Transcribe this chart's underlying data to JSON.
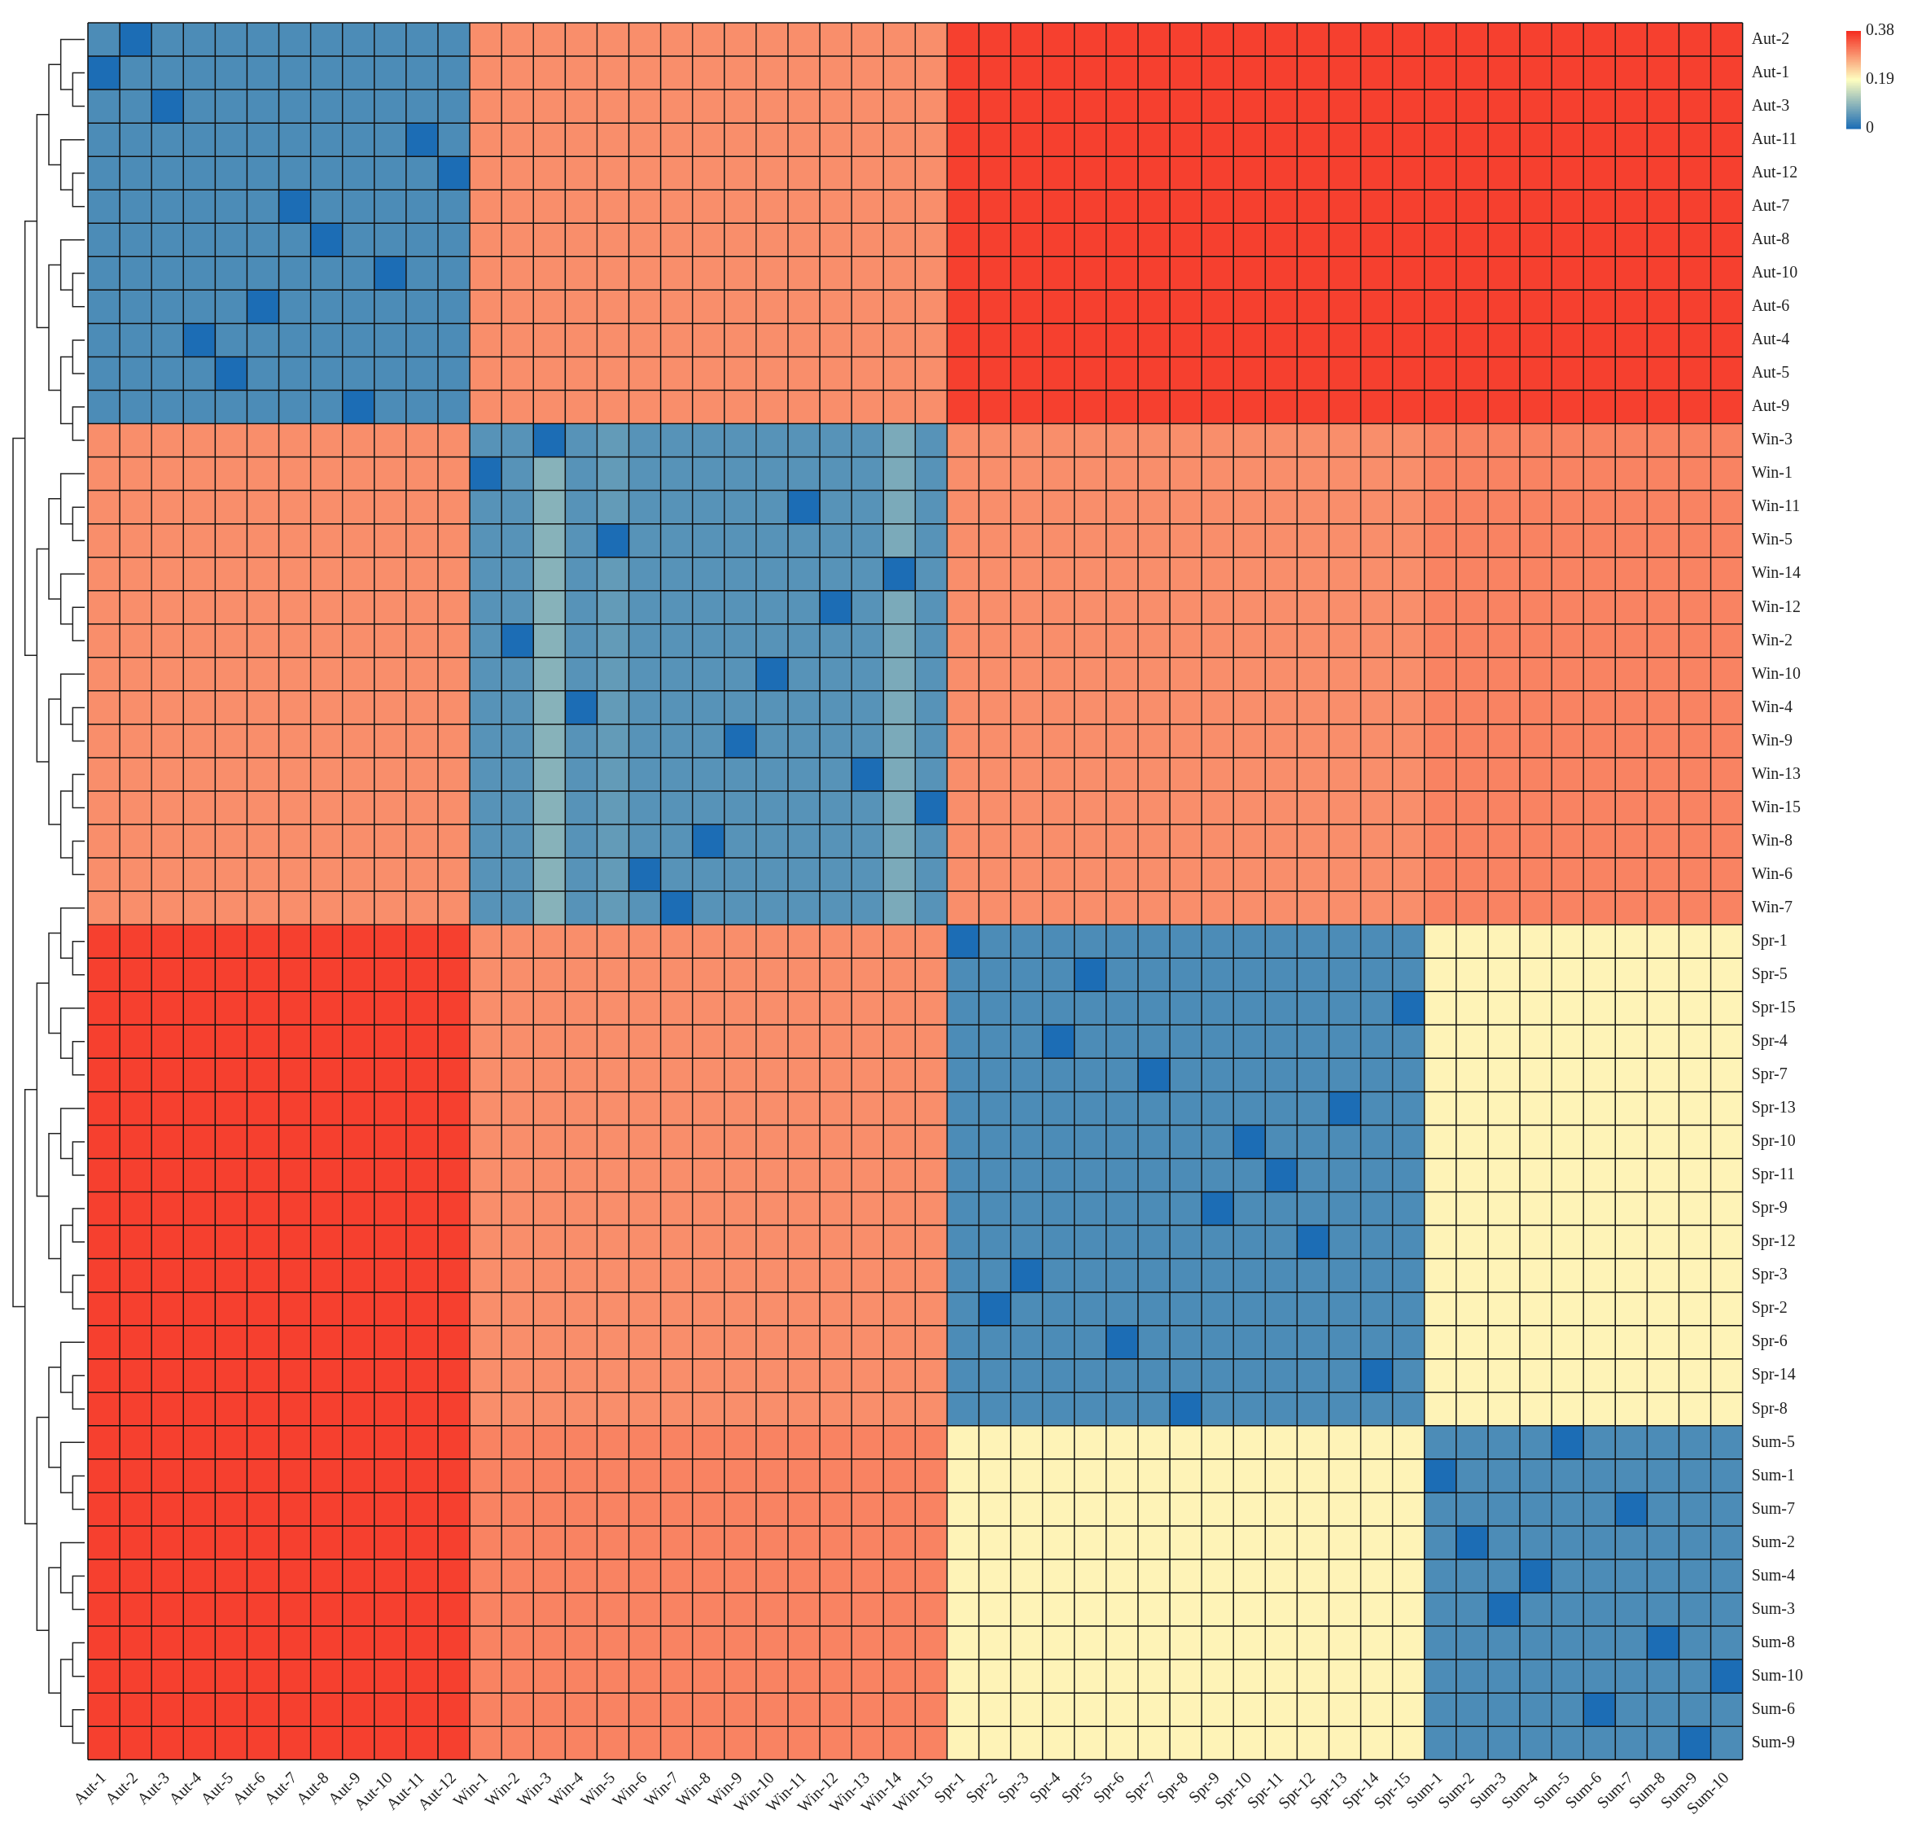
{
  "chart_data": {
    "type": "heatmap",
    "categories": [
      "Aut-1",
      "Aut-2",
      "Aut-3",
      "Aut-4",
      "Aut-5",
      "Aut-6",
      "Aut-7",
      "Aut-8",
      "Aut-9",
      "Aut-10",
      "Aut-11",
      "Aut-12",
      "Win-1",
      "Win-2",
      "Win-3",
      "Win-4",
      "Win-5",
      "Win-6",
      "Win-7",
      "Win-8",
      "Win-9",
      "Win-10",
      "Win-11",
      "Win-12",
      "Win-13",
      "Win-14",
      "Win-15",
      "Spr-1",
      "Spr-2",
      "Spr-3",
      "Spr-4",
      "Spr-5",
      "Spr-6",
      "Spr-7",
      "Spr-8",
      "Spr-9",
      "Spr-10",
      "Spr-11",
      "Spr-12",
      "Spr-13",
      "Spr-14",
      "Spr-15",
      "Sum-1",
      "Sum-2",
      "Sum-3",
      "Sum-4",
      "Sum-5",
      "Sum-6",
      "Sum-7",
      "Sum-8",
      "Sum-9",
      "Sum-10"
    ],
    "y_categories": [
      "Aut-2",
      "Aut-1",
      "Aut-3",
      "Aut-11",
      "Aut-12",
      "Aut-7",
      "Aut-8",
      "Aut-10",
      "Aut-6",
      "Aut-4",
      "Aut-5",
      "Aut-9",
      "Win-3",
      "Win-1",
      "Win-11",
      "Win-5",
      "Win-14",
      "Win-12",
      "Win-2",
      "Win-10",
      "Win-4",
      "Win-9",
      "Win-13",
      "Win-15",
      "Win-8",
      "Win-6",
      "Win-7",
      "Spr-1",
      "Spr-5",
      "Spr-15",
      "Spr-4",
      "Spr-7",
      "Spr-13",
      "Spr-10",
      "Spr-11",
      "Spr-9",
      "Spr-12",
      "Spr-3",
      "Spr-2",
      "Spr-6",
      "Spr-14",
      "Spr-8",
      "Sum-5",
      "Sum-1",
      "Sum-7",
      "Sum-2",
      "Sum-4",
      "Sum-3",
      "Sum-8",
      "Sum-10",
      "Sum-6",
      "Sum-9"
    ],
    "clim": [
      0,
      0.38
    ],
    "cticks": [
      0,
      0.19,
      0.38
    ],
    "cells": [
      [
        0.04,
        0,
        0.04,
        0.04,
        0.04,
        0.04,
        0.04,
        0.04,
        0.04,
        0.04,
        0.04,
        0.04,
        0.29,
        0.29,
        0.29,
        0.29,
        0.29,
        0.29,
        0.29,
        0.29,
        0.29,
        0.29,
        0.29,
        0.29,
        0.29,
        0.29,
        0.29,
        0.36,
        0.36,
        0.36,
        0.36,
        0.36,
        0.36,
        0.36,
        0.36,
        0.36,
        0.36,
        0.36,
        0.36,
        0.36,
        0.36,
        0.36,
        0.36,
        0.36,
        0.36,
        0.36,
        0.36,
        0.36,
        0.36,
        0.36,
        0.36,
        0.36
      ],
      [
        0,
        0.04,
        0.04,
        0.04,
        0.04,
        0.04,
        0.04,
        0.04,
        0.04,
        0.04,
        0.04,
        0.04,
        0.29,
        0.29,
        0.29,
        0.29,
        0.29,
        0.29,
        0.29,
        0.29,
        0.29,
        0.29,
        0.29,
        0.29,
        0.29,
        0.29,
        0.29,
        0.36,
        0.36,
        0.36,
        0.36,
        0.36,
        0.36,
        0.36,
        0.36,
        0.36,
        0.36,
        0.36,
        0.36,
        0.36,
        0.36,
        0.36,
        0.36,
        0.36,
        0.36,
        0.36,
        0.36,
        0.36,
        0.36,
        0.36,
        0.36,
        0.36
      ],
      [
        0.04,
        0.04,
        0,
        0.04,
        0.04,
        0.04,
        0.04,
        0.04,
        0.04,
        0.04,
        0.04,
        0.04,
        0.29,
        0.29,
        0.29,
        0.29,
        0.29,
        0.29,
        0.29,
        0.29,
        0.29,
        0.29,
        0.29,
        0.29,
        0.29,
        0.29,
        0.29,
        0.36,
        0.36,
        0.36,
        0.36,
        0.36,
        0.36,
        0.36,
        0.36,
        0.36,
        0.36,
        0.36,
        0.36,
        0.36,
        0.36,
        0.36,
        0.36,
        0.36,
        0.36,
        0.36,
        0.36,
        0.36,
        0.36,
        0.36,
        0.36,
        0.36
      ],
      [
        0.04,
        0.04,
        0.04,
        0.04,
        0.04,
        0.04,
        0.04,
        0.04,
        0.04,
        0.04,
        0,
        0.04,
        0.29,
        0.29,
        0.29,
        0.29,
        0.29,
        0.29,
        0.29,
        0.29,
        0.29,
        0.29,
        0.29,
        0.29,
        0.29,
        0.29,
        0.29,
        0.36,
        0.36,
        0.36,
        0.36,
        0.36,
        0.36,
        0.36,
        0.36,
        0.36,
        0.36,
        0.36,
        0.36,
        0.36,
        0.36,
        0.36,
        0.36,
        0.36,
        0.36,
        0.36,
        0.36,
        0.36,
        0.36,
        0.36,
        0.36,
        0.36
      ],
      [
        0.04,
        0.04,
        0.04,
        0.04,
        0.04,
        0.04,
        0.04,
        0.04,
        0.04,
        0.04,
        0.04,
        0,
        0.29,
        0.29,
        0.29,
        0.29,
        0.29,
        0.29,
        0.29,
        0.29,
        0.29,
        0.29,
        0.29,
        0.29,
        0.29,
        0.29,
        0.29,
        0.36,
        0.36,
        0.36,
        0.36,
        0.36,
        0.36,
        0.36,
        0.36,
        0.36,
        0.36,
        0.36,
        0.36,
        0.36,
        0.36,
        0.36,
        0.36,
        0.36,
        0.36,
        0.36,
        0.36,
        0.36,
        0.36,
        0.36,
        0.36,
        0.36
      ],
      [
        0.04,
        0.04,
        0.04,
        0.04,
        0.04,
        0.04,
        0,
        0.04,
        0.04,
        0.04,
        0.04,
        0.04,
        0.29,
        0.29,
        0.29,
        0.29,
        0.29,
        0.29,
        0.29,
        0.29,
        0.29,
        0.29,
        0.29,
        0.29,
        0.29,
        0.29,
        0.29,
        0.36,
        0.36,
        0.36,
        0.36,
        0.36,
        0.36,
        0.36,
        0.36,
        0.36,
        0.36,
        0.36,
        0.36,
        0.36,
        0.36,
        0.36,
        0.36,
        0.36,
        0.36,
        0.36,
        0.36,
        0.36,
        0.36,
        0.36,
        0.36,
        0.36
      ],
      [
        0.04,
        0.04,
        0.04,
        0.04,
        0.04,
        0.04,
        0.04,
        0,
        0.04,
        0.04,
        0.04,
        0.04,
        0.29,
        0.29,
        0.29,
        0.29,
        0.29,
        0.29,
        0.29,
        0.29,
        0.29,
        0.29,
        0.29,
        0.29,
        0.29,
        0.29,
        0.29,
        0.36,
        0.36,
        0.36,
        0.36,
        0.36,
        0.36,
        0.36,
        0.36,
        0.36,
        0.36,
        0.36,
        0.36,
        0.36,
        0.36,
        0.36,
        0.36,
        0.36,
        0.36,
        0.36,
        0.36,
        0.36,
        0.36,
        0.36,
        0.36,
        0.36
      ],
      [
        0.04,
        0.04,
        0.04,
        0.04,
        0.04,
        0.04,
        0.04,
        0.04,
        0.04,
        0,
        0.04,
        0.04,
        0.29,
        0.29,
        0.29,
        0.29,
        0.29,
        0.29,
        0.29,
        0.29,
        0.29,
        0.29,
        0.29,
        0.29,
        0.29,
        0.29,
        0.29,
        0.36,
        0.36,
        0.36,
        0.36,
        0.36,
        0.36,
        0.36,
        0.36,
        0.36,
        0.36,
        0.36,
        0.36,
        0.36,
        0.36,
        0.36,
        0.36,
        0.36,
        0.36,
        0.36,
        0.36,
        0.36,
        0.36,
        0.36,
        0.36,
        0.36
      ],
      [
        0.04,
        0.04,
        0.04,
        0.04,
        0.04,
        0,
        0.04,
        0.04,
        0.04,
        0.04,
        0.04,
        0.04,
        0.29,
        0.29,
        0.29,
        0.29,
        0.29,
        0.29,
        0.29,
        0.29,
        0.29,
        0.29,
        0.29,
        0.29,
        0.29,
        0.29,
        0.29,
        0.36,
        0.36,
        0.36,
        0.36,
        0.36,
        0.36,
        0.36,
        0.36,
        0.36,
        0.36,
        0.36,
        0.36,
        0.36,
        0.36,
        0.36,
        0.36,
        0.36,
        0.36,
        0.36,
        0.36,
        0.36,
        0.36,
        0.36,
        0.36,
        0.36
      ],
      [
        0.04,
        0.04,
        0.04,
        0,
        0.04,
        0.04,
        0.04,
        0.04,
        0.04,
        0.04,
        0.04,
        0.04,
        0.29,
        0.29,
        0.29,
        0.29,
        0.29,
        0.29,
        0.29,
        0.29,
        0.29,
        0.29,
        0.29,
        0.29,
        0.29,
        0.29,
        0.29,
        0.36,
        0.36,
        0.36,
        0.36,
        0.36,
        0.36,
        0.36,
        0.36,
        0.36,
        0.36,
        0.36,
        0.36,
        0.36,
        0.36,
        0.36,
        0.36,
        0.36,
        0.36,
        0.36,
        0.36,
        0.36,
        0.36,
        0.36,
        0.36,
        0.36
      ],
      [
        0.04,
        0.04,
        0.04,
        0.04,
        0,
        0.04,
        0.04,
        0.04,
        0.04,
        0.04,
        0.04,
        0.04,
        0.29,
        0.29,
        0.29,
        0.29,
        0.29,
        0.29,
        0.29,
        0.29,
        0.29,
        0.29,
        0.29,
        0.29,
        0.29,
        0.29,
        0.29,
        0.36,
        0.36,
        0.36,
        0.36,
        0.36,
        0.36,
        0.36,
        0.36,
        0.36,
        0.36,
        0.36,
        0.36,
        0.36,
        0.36,
        0.36,
        0.36,
        0.36,
        0.36,
        0.36,
        0.36,
        0.36,
        0.36,
        0.36,
        0.36,
        0.36
      ],
      [
        0.04,
        0.04,
        0.04,
        0.04,
        0.04,
        0.04,
        0.04,
        0.04,
        0,
        0.04,
        0.04,
        0.04,
        0.29,
        0.29,
        0.29,
        0.29,
        0.29,
        0.29,
        0.29,
        0.29,
        0.29,
        0.29,
        0.29,
        0.29,
        0.29,
        0.29,
        0.29,
        0.36,
        0.36,
        0.36,
        0.36,
        0.36,
        0.36,
        0.36,
        0.36,
        0.36,
        0.36,
        0.36,
        0.36,
        0.36,
        0.36,
        0.36,
        0.36,
        0.36,
        0.36,
        0.36,
        0.36,
        0.36,
        0.36,
        0.36,
        0.36,
        0.36
      ],
      [
        0.29,
        0.29,
        0.29,
        0.29,
        0.29,
        0.29,
        0.29,
        0.29,
        0.29,
        0.29,
        0.29,
        0.29,
        0.05,
        0.05,
        0,
        0.05,
        0.06,
        0.05,
        0.05,
        0.05,
        0.05,
        0.05,
        0.05,
        0.05,
        0.05,
        0.08,
        0.05,
        0.29,
        0.29,
        0.29,
        0.29,
        0.29,
        0.29,
        0.29,
        0.29,
        0.29,
        0.29,
        0.29,
        0.29,
        0.29,
        0.29,
        0.29,
        0.3,
        0.3,
        0.3,
        0.3,
        0.3,
        0.3,
        0.3,
        0.3,
        0.3,
        0.3
      ],
      [
        0.29,
        0.29,
        0.29,
        0.29,
        0.29,
        0.29,
        0.29,
        0.29,
        0.29,
        0.29,
        0.29,
        0.29,
        0,
        0.05,
        0.09,
        0.05,
        0.06,
        0.05,
        0.05,
        0.05,
        0.05,
        0.05,
        0.05,
        0.05,
        0.05,
        0.08,
        0.05,
        0.29,
        0.29,
        0.29,
        0.29,
        0.29,
        0.29,
        0.29,
        0.29,
        0.29,
        0.29,
        0.29,
        0.29,
        0.29,
        0.29,
        0.29,
        0.3,
        0.3,
        0.3,
        0.3,
        0.3,
        0.3,
        0.3,
        0.3,
        0.3,
        0.3
      ],
      [
        0.29,
        0.29,
        0.29,
        0.29,
        0.29,
        0.29,
        0.29,
        0.29,
        0.29,
        0.29,
        0.29,
        0.29,
        0.05,
        0.05,
        0.09,
        0.05,
        0.06,
        0.05,
        0.05,
        0.05,
        0.05,
        0.05,
        0,
        0.05,
        0.05,
        0.08,
        0.05,
        0.29,
        0.29,
        0.29,
        0.29,
        0.29,
        0.29,
        0.29,
        0.29,
        0.29,
        0.29,
        0.29,
        0.29,
        0.29,
        0.29,
        0.29,
        0.3,
        0.3,
        0.3,
        0.3,
        0.3,
        0.3,
        0.3,
        0.3,
        0.3,
        0.3
      ],
      [
        0.29,
        0.29,
        0.29,
        0.29,
        0.29,
        0.29,
        0.29,
        0.29,
        0.29,
        0.29,
        0.29,
        0.29,
        0.05,
        0.05,
        0.09,
        0.05,
        0,
        0.05,
        0.05,
        0.05,
        0.05,
        0.05,
        0.05,
        0.05,
        0.05,
        0.08,
        0.05,
        0.29,
        0.29,
        0.29,
        0.29,
        0.29,
        0.29,
        0.29,
        0.29,
        0.29,
        0.29,
        0.29,
        0.29,
        0.29,
        0.29,
        0.29,
        0.3,
        0.3,
        0.3,
        0.3,
        0.3,
        0.3,
        0.3,
        0.3,
        0.3,
        0.3
      ],
      [
        0.29,
        0.29,
        0.29,
        0.29,
        0.29,
        0.29,
        0.29,
        0.29,
        0.29,
        0.29,
        0.29,
        0.29,
        0.05,
        0.05,
        0.09,
        0.05,
        0.06,
        0.05,
        0.05,
        0.05,
        0.05,
        0.05,
        0.05,
        0.05,
        0.05,
        0,
        0.05,
        0.29,
        0.29,
        0.29,
        0.29,
        0.29,
        0.29,
        0.29,
        0.29,
        0.29,
        0.29,
        0.29,
        0.29,
        0.29,
        0.29,
        0.29,
        0.3,
        0.3,
        0.3,
        0.3,
        0.3,
        0.3,
        0.3,
        0.3,
        0.3,
        0.3
      ],
      [
        0.29,
        0.29,
        0.29,
        0.29,
        0.29,
        0.29,
        0.29,
        0.29,
        0.29,
        0.29,
        0.29,
        0.29,
        0.05,
        0.05,
        0.09,
        0.05,
        0.06,
        0.05,
        0.05,
        0.05,
        0.05,
        0.05,
        0.05,
        0,
        0.05,
        0.08,
        0.05,
        0.29,
        0.29,
        0.29,
        0.29,
        0.29,
        0.29,
        0.29,
        0.29,
        0.29,
        0.29,
        0.29,
        0.29,
        0.29,
        0.29,
        0.29,
        0.3,
        0.3,
        0.3,
        0.3,
        0.3,
        0.3,
        0.3,
        0.3,
        0.3,
        0.3
      ],
      [
        0.29,
        0.29,
        0.29,
        0.29,
        0.29,
        0.29,
        0.29,
        0.29,
        0.29,
        0.29,
        0.29,
        0.29,
        0.05,
        0,
        0.09,
        0.05,
        0.06,
        0.05,
        0.05,
        0.05,
        0.05,
        0.05,
        0.05,
        0.05,
        0.05,
        0.08,
        0.05,
        0.29,
        0.29,
        0.29,
        0.29,
        0.29,
        0.29,
        0.29,
        0.29,
        0.29,
        0.29,
        0.29,
        0.29,
        0.29,
        0.29,
        0.29,
        0.3,
        0.3,
        0.3,
        0.3,
        0.3,
        0.3,
        0.3,
        0.3,
        0.3,
        0.3
      ],
      [
        0.29,
        0.29,
        0.29,
        0.29,
        0.29,
        0.29,
        0.29,
        0.29,
        0.29,
        0.29,
        0.29,
        0.29,
        0.05,
        0.05,
        0.09,
        0.05,
        0.06,
        0.05,
        0.05,
        0.05,
        0.05,
        0,
        0.05,
        0.05,
        0.05,
        0.08,
        0.05,
        0.29,
        0.29,
        0.29,
        0.29,
        0.29,
        0.29,
        0.29,
        0.29,
        0.29,
        0.29,
        0.29,
        0.29,
        0.29,
        0.29,
        0.29,
        0.3,
        0.3,
        0.3,
        0.3,
        0.3,
        0.3,
        0.3,
        0.3,
        0.3,
        0.3
      ],
      [
        0.29,
        0.29,
        0.29,
        0.29,
        0.29,
        0.29,
        0.29,
        0.29,
        0.29,
        0.29,
        0.29,
        0.29,
        0.05,
        0.05,
        0.09,
        0,
        0.06,
        0.05,
        0.05,
        0.05,
        0.05,
        0.05,
        0.05,
        0.05,
        0.05,
        0.08,
        0.05,
        0.29,
        0.29,
        0.29,
        0.29,
        0.29,
        0.29,
        0.29,
        0.29,
        0.29,
        0.29,
        0.29,
        0.29,
        0.29,
        0.29,
        0.29,
        0.3,
        0.3,
        0.3,
        0.3,
        0.3,
        0.3,
        0.3,
        0.3,
        0.3,
        0.3
      ],
      [
        0.29,
        0.29,
        0.29,
        0.29,
        0.29,
        0.29,
        0.29,
        0.29,
        0.29,
        0.29,
        0.29,
        0.29,
        0.05,
        0.05,
        0.09,
        0.05,
        0.06,
        0.05,
        0.05,
        0.05,
        0,
        0.05,
        0.05,
        0.05,
        0.05,
        0.08,
        0.05,
        0.29,
        0.29,
        0.29,
        0.29,
        0.29,
        0.29,
        0.29,
        0.29,
        0.29,
        0.29,
        0.29,
        0.29,
        0.29,
        0.29,
        0.29,
        0.3,
        0.3,
        0.3,
        0.3,
        0.3,
        0.3,
        0.3,
        0.3,
        0.3,
        0.3
      ],
      [
        0.29,
        0.29,
        0.29,
        0.29,
        0.29,
        0.29,
        0.29,
        0.29,
        0.29,
        0.29,
        0.29,
        0.29,
        0.05,
        0.05,
        0.09,
        0.05,
        0.06,
        0.05,
        0.05,
        0.05,
        0.05,
        0.05,
        0.05,
        0.05,
        0,
        0.08,
        0.05,
        0.29,
        0.29,
        0.29,
        0.29,
        0.29,
        0.29,
        0.29,
        0.29,
        0.29,
        0.29,
        0.29,
        0.29,
        0.29,
        0.29,
        0.29,
        0.3,
        0.3,
        0.3,
        0.3,
        0.3,
        0.3,
        0.3,
        0.3,
        0.3,
        0.3
      ],
      [
        0.29,
        0.29,
        0.29,
        0.29,
        0.29,
        0.29,
        0.29,
        0.29,
        0.29,
        0.29,
        0.29,
        0.29,
        0.05,
        0.05,
        0.09,
        0.05,
        0.06,
        0.05,
        0.05,
        0.05,
        0.05,
        0.05,
        0.05,
        0.05,
        0.05,
        0.08,
        0,
        0.29,
        0.29,
        0.29,
        0.29,
        0.29,
        0.29,
        0.29,
        0.29,
        0.29,
        0.29,
        0.29,
        0.29,
        0.29,
        0.29,
        0.29,
        0.3,
        0.3,
        0.3,
        0.3,
        0.3,
        0.3,
        0.3,
        0.3,
        0.3,
        0.3
      ],
      [
        0.29,
        0.29,
        0.29,
        0.29,
        0.29,
        0.29,
        0.29,
        0.29,
        0.29,
        0.29,
        0.29,
        0.29,
        0.05,
        0.05,
        0.09,
        0.05,
        0.06,
        0.05,
        0.05,
        0,
        0.05,
        0.05,
        0.05,
        0.05,
        0.05,
        0.08,
        0.05,
        0.29,
        0.29,
        0.29,
        0.29,
        0.29,
        0.29,
        0.29,
        0.29,
        0.29,
        0.29,
        0.29,
        0.29,
        0.29,
        0.29,
        0.29,
        0.3,
        0.3,
        0.3,
        0.3,
        0.3,
        0.3,
        0.3,
        0.3,
        0.3,
        0.3
      ],
      [
        0.29,
        0.29,
        0.29,
        0.29,
        0.29,
        0.29,
        0.29,
        0.29,
        0.29,
        0.29,
        0.29,
        0.29,
        0.05,
        0.05,
        0.09,
        0.05,
        0.06,
        0,
        0.05,
        0.05,
        0.05,
        0.05,
        0.05,
        0.05,
        0.05,
        0.08,
        0.05,
        0.29,
        0.29,
        0.29,
        0.29,
        0.29,
        0.29,
        0.29,
        0.29,
        0.29,
        0.29,
        0.29,
        0.29,
        0.29,
        0.29,
        0.29,
        0.3,
        0.3,
        0.3,
        0.3,
        0.3,
        0.3,
        0.3,
        0.3,
        0.3,
        0.3
      ],
      [
        0.29,
        0.29,
        0.29,
        0.29,
        0.29,
        0.29,
        0.29,
        0.29,
        0.29,
        0.29,
        0.29,
        0.29,
        0.05,
        0.05,
        0.09,
        0.05,
        0.06,
        0.05,
        0,
        0.05,
        0.05,
        0.05,
        0.05,
        0.05,
        0.05,
        0.08,
        0.05,
        0.29,
        0.29,
        0.29,
        0.29,
        0.29,
        0.29,
        0.29,
        0.29,
        0.29,
        0.29,
        0.29,
        0.29,
        0.29,
        0.29,
        0.29,
        0.3,
        0.3,
        0.3,
        0.3,
        0.3,
        0.3,
        0.3,
        0.3,
        0.3,
        0.3
      ],
      [
        0.36,
        0.36,
        0.36,
        0.36,
        0.36,
        0.36,
        0.36,
        0.36,
        0.36,
        0.36,
        0.36,
        0.36,
        0.29,
        0.29,
        0.29,
        0.29,
        0.29,
        0.29,
        0.29,
        0.29,
        0.29,
        0.29,
        0.29,
        0.29,
        0.29,
        0.29,
        0.29,
        0,
        0.04,
        0.04,
        0.04,
        0.04,
        0.04,
        0.04,
        0.04,
        0.04,
        0.04,
        0.04,
        0.04,
        0.04,
        0.04,
        0.04,
        0.2,
        0.2,
        0.2,
        0.2,
        0.2,
        0.2,
        0.2,
        0.2,
        0.2,
        0.2
      ],
      [
        0.36,
        0.36,
        0.36,
        0.36,
        0.36,
        0.36,
        0.36,
        0.36,
        0.36,
        0.36,
        0.36,
        0.36,
        0.29,
        0.29,
        0.29,
        0.29,
        0.29,
        0.29,
        0.29,
        0.29,
        0.29,
        0.29,
        0.29,
        0.29,
        0.29,
        0.29,
        0.29,
        0.04,
        0.04,
        0.04,
        0.04,
        0,
        0.04,
        0.04,
        0.04,
        0.04,
        0.04,
        0.04,
        0.04,
        0.04,
        0.04,
        0.04,
        0.2,
        0.2,
        0.2,
        0.2,
        0.2,
        0.2,
        0.2,
        0.2,
        0.2,
        0.2
      ],
      [
        0.36,
        0.36,
        0.36,
        0.36,
        0.36,
        0.36,
        0.36,
        0.36,
        0.36,
        0.36,
        0.36,
        0.36,
        0.29,
        0.29,
        0.29,
        0.29,
        0.29,
        0.29,
        0.29,
        0.29,
        0.29,
        0.29,
        0.29,
        0.29,
        0.29,
        0.29,
        0.29,
        0.04,
        0.04,
        0.04,
        0.04,
        0.04,
        0.04,
        0.04,
        0.04,
        0.04,
        0.04,
        0.04,
        0.04,
        0.04,
        0.04,
        0,
        0.2,
        0.2,
        0.2,
        0.2,
        0.2,
        0.2,
        0.2,
        0.2,
        0.2,
        0.2
      ],
      [
        0.36,
        0.36,
        0.36,
        0.36,
        0.36,
        0.36,
        0.36,
        0.36,
        0.36,
        0.36,
        0.36,
        0.36,
        0.29,
        0.29,
        0.29,
        0.29,
        0.29,
        0.29,
        0.29,
        0.29,
        0.29,
        0.29,
        0.29,
        0.29,
        0.29,
        0.29,
        0.29,
        0.04,
        0.04,
        0.04,
        0,
        0.04,
        0.04,
        0.04,
        0.04,
        0.04,
        0.04,
        0.04,
        0.04,
        0.04,
        0.04,
        0.04,
        0.2,
        0.2,
        0.2,
        0.2,
        0.2,
        0.2,
        0.2,
        0.2,
        0.2,
        0.2
      ],
      [
        0.36,
        0.36,
        0.36,
        0.36,
        0.36,
        0.36,
        0.36,
        0.36,
        0.36,
        0.36,
        0.36,
        0.36,
        0.29,
        0.29,
        0.29,
        0.29,
        0.29,
        0.29,
        0.29,
        0.29,
        0.29,
        0.29,
        0.29,
        0.29,
        0.29,
        0.29,
        0.29,
        0.04,
        0.04,
        0.04,
        0.04,
        0.04,
        0.04,
        0,
        0.04,
        0.04,
        0.04,
        0.04,
        0.04,
        0.04,
        0.04,
        0.04,
        0.2,
        0.2,
        0.2,
        0.2,
        0.2,
        0.2,
        0.2,
        0.2,
        0.2,
        0.2
      ],
      [
        0.36,
        0.36,
        0.36,
        0.36,
        0.36,
        0.36,
        0.36,
        0.36,
        0.36,
        0.36,
        0.36,
        0.36,
        0.29,
        0.29,
        0.29,
        0.29,
        0.29,
        0.29,
        0.29,
        0.29,
        0.29,
        0.29,
        0.29,
        0.29,
        0.29,
        0.29,
        0.29,
        0.04,
        0.04,
        0.04,
        0.04,
        0.04,
        0.04,
        0.04,
        0.04,
        0.04,
        0.04,
        0.04,
        0.04,
        0,
        0.04,
        0.04,
        0.2,
        0.2,
        0.2,
        0.2,
        0.2,
        0.2,
        0.2,
        0.2,
        0.2,
        0.2
      ],
      [
        0.36,
        0.36,
        0.36,
        0.36,
        0.36,
        0.36,
        0.36,
        0.36,
        0.36,
        0.36,
        0.36,
        0.36,
        0.29,
        0.29,
        0.29,
        0.29,
        0.29,
        0.29,
        0.29,
        0.29,
        0.29,
        0.29,
        0.29,
        0.29,
        0.29,
        0.29,
        0.29,
        0.04,
        0.04,
        0.04,
        0.04,
        0.04,
        0.04,
        0.04,
        0.04,
        0.04,
        0,
        0.04,
        0.04,
        0.04,
        0.04,
        0.04,
        0.2,
        0.2,
        0.2,
        0.2,
        0.2,
        0.2,
        0.2,
        0.2,
        0.2,
        0.2
      ],
      [
        0.36,
        0.36,
        0.36,
        0.36,
        0.36,
        0.36,
        0.36,
        0.36,
        0.36,
        0.36,
        0.36,
        0.36,
        0.29,
        0.29,
        0.29,
        0.29,
        0.29,
        0.29,
        0.29,
        0.29,
        0.29,
        0.29,
        0.29,
        0.29,
        0.29,
        0.29,
        0.29,
        0.04,
        0.04,
        0.04,
        0.04,
        0.04,
        0.04,
        0.04,
        0.04,
        0.04,
        0.04,
        0,
        0.04,
        0.04,
        0.04,
        0.04,
        0.2,
        0.2,
        0.2,
        0.2,
        0.2,
        0.2,
        0.2,
        0.2,
        0.2,
        0.2
      ],
      [
        0.36,
        0.36,
        0.36,
        0.36,
        0.36,
        0.36,
        0.36,
        0.36,
        0.36,
        0.36,
        0.36,
        0.36,
        0.29,
        0.29,
        0.29,
        0.29,
        0.29,
        0.29,
        0.29,
        0.29,
        0.29,
        0.29,
        0.29,
        0.29,
        0.29,
        0.29,
        0.29,
        0.04,
        0.04,
        0.04,
        0.04,
        0.04,
        0.04,
        0.04,
        0.04,
        0,
        0.04,
        0.04,
        0.04,
        0.04,
        0.04,
        0.04,
        0.2,
        0.2,
        0.2,
        0.2,
        0.2,
        0.2,
        0.2,
        0.2,
        0.2,
        0.2
      ],
      [
        0.36,
        0.36,
        0.36,
        0.36,
        0.36,
        0.36,
        0.36,
        0.36,
        0.36,
        0.36,
        0.36,
        0.36,
        0.29,
        0.29,
        0.29,
        0.29,
        0.29,
        0.29,
        0.29,
        0.29,
        0.29,
        0.29,
        0.29,
        0.29,
        0.29,
        0.29,
        0.29,
        0.04,
        0.04,
        0.04,
        0.04,
        0.04,
        0.04,
        0.04,
        0.04,
        0.04,
        0.04,
        0.04,
        0,
        0.04,
        0.04,
        0.04,
        0.2,
        0.2,
        0.2,
        0.2,
        0.2,
        0.2,
        0.2,
        0.2,
        0.2,
        0.2
      ],
      [
        0.36,
        0.36,
        0.36,
        0.36,
        0.36,
        0.36,
        0.36,
        0.36,
        0.36,
        0.36,
        0.36,
        0.36,
        0.29,
        0.29,
        0.29,
        0.29,
        0.29,
        0.29,
        0.29,
        0.29,
        0.29,
        0.29,
        0.29,
        0.29,
        0.29,
        0.29,
        0.29,
        0.04,
        0.04,
        0,
        0.04,
        0.04,
        0.04,
        0.04,
        0.04,
        0.04,
        0.04,
        0.04,
        0.04,
        0.04,
        0.04,
        0.04,
        0.2,
        0.2,
        0.2,
        0.2,
        0.2,
        0.2,
        0.2,
        0.2,
        0.2,
        0.2
      ],
      [
        0.36,
        0.36,
        0.36,
        0.36,
        0.36,
        0.36,
        0.36,
        0.36,
        0.36,
        0.36,
        0.36,
        0.36,
        0.29,
        0.29,
        0.29,
        0.29,
        0.29,
        0.29,
        0.29,
        0.29,
        0.29,
        0.29,
        0.29,
        0.29,
        0.29,
        0.29,
        0.29,
        0.04,
        0,
        0.04,
        0.04,
        0.04,
        0.04,
        0.04,
        0.04,
        0.04,
        0.04,
        0.04,
        0.04,
        0.04,
        0.04,
        0.04,
        0.2,
        0.2,
        0.2,
        0.2,
        0.2,
        0.2,
        0.2,
        0.2,
        0.2,
        0.2
      ],
      [
        0.36,
        0.36,
        0.36,
        0.36,
        0.36,
        0.36,
        0.36,
        0.36,
        0.36,
        0.36,
        0.36,
        0.36,
        0.29,
        0.29,
        0.29,
        0.29,
        0.29,
        0.29,
        0.29,
        0.29,
        0.29,
        0.29,
        0.29,
        0.29,
        0.29,
        0.29,
        0.29,
        0.04,
        0.04,
        0.04,
        0.04,
        0.04,
        0,
        0.04,
        0.04,
        0.04,
        0.04,
        0.04,
        0.04,
        0.04,
        0.04,
        0.04,
        0.2,
        0.2,
        0.2,
        0.2,
        0.2,
        0.2,
        0.2,
        0.2,
        0.2,
        0.2
      ],
      [
        0.36,
        0.36,
        0.36,
        0.36,
        0.36,
        0.36,
        0.36,
        0.36,
        0.36,
        0.36,
        0.36,
        0.36,
        0.29,
        0.29,
        0.29,
        0.29,
        0.29,
        0.29,
        0.29,
        0.29,
        0.29,
        0.29,
        0.29,
        0.29,
        0.29,
        0.29,
        0.29,
        0.04,
        0.04,
        0.04,
        0.04,
        0.04,
        0.04,
        0.04,
        0.04,
        0.04,
        0.04,
        0.04,
        0.04,
        0.04,
        0,
        0.04,
        0.2,
        0.2,
        0.2,
        0.2,
        0.2,
        0.2,
        0.2,
        0.2,
        0.2,
        0.2
      ],
      [
        0.36,
        0.36,
        0.36,
        0.36,
        0.36,
        0.36,
        0.36,
        0.36,
        0.36,
        0.36,
        0.36,
        0.36,
        0.29,
        0.29,
        0.29,
        0.29,
        0.29,
        0.29,
        0.29,
        0.29,
        0.29,
        0.29,
        0.29,
        0.29,
        0.29,
        0.29,
        0.29,
        0.04,
        0.04,
        0.04,
        0.04,
        0.04,
        0.04,
        0.04,
        0,
        0.04,
        0.04,
        0.04,
        0.04,
        0.04,
        0.04,
        0.04,
        0.2,
        0.2,
        0.2,
        0.2,
        0.2,
        0.2,
        0.2,
        0.2,
        0.2,
        0.2
      ],
      [
        0.36,
        0.36,
        0.36,
        0.36,
        0.36,
        0.36,
        0.36,
        0.36,
        0.36,
        0.36,
        0.36,
        0.36,
        0.3,
        0.3,
        0.3,
        0.3,
        0.3,
        0.3,
        0.3,
        0.3,
        0.3,
        0.3,
        0.3,
        0.3,
        0.3,
        0.3,
        0.3,
        0.2,
        0.2,
        0.2,
        0.2,
        0.2,
        0.2,
        0.2,
        0.2,
        0.2,
        0.2,
        0.2,
        0.2,
        0.2,
        0.2,
        0.2,
        0.04,
        0.04,
        0.04,
        0.04,
        0,
        0.04,
        0.04,
        0.04,
        0.04,
        0.04
      ],
      [
        0.36,
        0.36,
        0.36,
        0.36,
        0.36,
        0.36,
        0.36,
        0.36,
        0.36,
        0.36,
        0.36,
        0.36,
        0.3,
        0.3,
        0.3,
        0.3,
        0.3,
        0.3,
        0.3,
        0.3,
        0.3,
        0.3,
        0.3,
        0.3,
        0.3,
        0.3,
        0.3,
        0.2,
        0.2,
        0.2,
        0.2,
        0.2,
        0.2,
        0.2,
        0.2,
        0.2,
        0.2,
        0.2,
        0.2,
        0.2,
        0.2,
        0.2,
        0,
        0.04,
        0.04,
        0.04,
        0.04,
        0.04,
        0.04,
        0.04,
        0.04,
        0.04
      ],
      [
        0.36,
        0.36,
        0.36,
        0.36,
        0.36,
        0.36,
        0.36,
        0.36,
        0.36,
        0.36,
        0.36,
        0.36,
        0.3,
        0.3,
        0.3,
        0.3,
        0.3,
        0.3,
        0.3,
        0.3,
        0.3,
        0.3,
        0.3,
        0.3,
        0.3,
        0.3,
        0.3,
        0.2,
        0.2,
        0.2,
        0.2,
        0.2,
        0.2,
        0.2,
        0.2,
        0.2,
        0.2,
        0.2,
        0.2,
        0.2,
        0.2,
        0.2,
        0.04,
        0.04,
        0.04,
        0.04,
        0.04,
        0.04,
        0,
        0.04,
        0.04,
        0.04
      ],
      [
        0.36,
        0.36,
        0.36,
        0.36,
        0.36,
        0.36,
        0.36,
        0.36,
        0.36,
        0.36,
        0.36,
        0.36,
        0.3,
        0.3,
        0.3,
        0.3,
        0.3,
        0.3,
        0.3,
        0.3,
        0.3,
        0.3,
        0.3,
        0.3,
        0.3,
        0.3,
        0.3,
        0.2,
        0.2,
        0.2,
        0.2,
        0.2,
        0.2,
        0.2,
        0.2,
        0.2,
        0.2,
        0.2,
        0.2,
        0.2,
        0.2,
        0.2,
        0.04,
        0,
        0.04,
        0.04,
        0.04,
        0.04,
        0.04,
        0.04,
        0.04,
        0.04
      ],
      [
        0.36,
        0.36,
        0.36,
        0.36,
        0.36,
        0.36,
        0.36,
        0.36,
        0.36,
        0.36,
        0.36,
        0.36,
        0.3,
        0.3,
        0.3,
        0.3,
        0.3,
        0.3,
        0.3,
        0.3,
        0.3,
        0.3,
        0.3,
        0.3,
        0.3,
        0.3,
        0.3,
        0.2,
        0.2,
        0.2,
        0.2,
        0.2,
        0.2,
        0.2,
        0.2,
        0.2,
        0.2,
        0.2,
        0.2,
        0.2,
        0.2,
        0.2,
        0.04,
        0.04,
        0.04,
        0,
        0.04,
        0.04,
        0.04,
        0.04,
        0.04,
        0.04
      ],
      [
        0.36,
        0.36,
        0.36,
        0.36,
        0.36,
        0.36,
        0.36,
        0.36,
        0.36,
        0.36,
        0.36,
        0.36,
        0.3,
        0.3,
        0.3,
        0.3,
        0.3,
        0.3,
        0.3,
        0.3,
        0.3,
        0.3,
        0.3,
        0.3,
        0.3,
        0.3,
        0.3,
        0.2,
        0.2,
        0.2,
        0.2,
        0.2,
        0.2,
        0.2,
        0.2,
        0.2,
        0.2,
        0.2,
        0.2,
        0.2,
        0.2,
        0.2,
        0.04,
        0.04,
        0,
        0.04,
        0.04,
        0.04,
        0.04,
        0.04,
        0.04,
        0.04
      ],
      [
        0.36,
        0.36,
        0.36,
        0.36,
        0.36,
        0.36,
        0.36,
        0.36,
        0.36,
        0.36,
        0.36,
        0.36,
        0.3,
        0.3,
        0.3,
        0.3,
        0.3,
        0.3,
        0.3,
        0.3,
        0.3,
        0.3,
        0.3,
        0.3,
        0.3,
        0.3,
        0.3,
        0.2,
        0.2,
        0.2,
        0.2,
        0.2,
        0.2,
        0.2,
        0.2,
        0.2,
        0.2,
        0.2,
        0.2,
        0.2,
        0.2,
        0.2,
        0.04,
        0.04,
        0.04,
        0.04,
        0.04,
        0.04,
        0.04,
        0,
        0.04,
        0.04
      ],
      [
        0.36,
        0.36,
        0.36,
        0.36,
        0.36,
        0.36,
        0.36,
        0.36,
        0.36,
        0.36,
        0.36,
        0.36,
        0.3,
        0.3,
        0.3,
        0.3,
        0.3,
        0.3,
        0.3,
        0.3,
        0.3,
        0.3,
        0.3,
        0.3,
        0.3,
        0.3,
        0.3,
        0.2,
        0.2,
        0.2,
        0.2,
        0.2,
        0.2,
        0.2,
        0.2,
        0.2,
        0.2,
        0.2,
        0.2,
        0.2,
        0.2,
        0.2,
        0.04,
        0.04,
        0.04,
        0.04,
        0.04,
        0.04,
        0.04,
        0.04,
        0.04,
        0
      ],
      [
        0.36,
        0.36,
        0.36,
        0.36,
        0.36,
        0.36,
        0.36,
        0.36,
        0.36,
        0.36,
        0.36,
        0.36,
        0.3,
        0.3,
        0.3,
        0.3,
        0.3,
        0.3,
        0.3,
        0.3,
        0.3,
        0.3,
        0.3,
        0.3,
        0.3,
        0.3,
        0.3,
        0.2,
        0.2,
        0.2,
        0.2,
        0.2,
        0.2,
        0.2,
        0.2,
        0.2,
        0.2,
        0.2,
        0.2,
        0.2,
        0.2,
        0.2,
        0.04,
        0.04,
        0.04,
        0.04,
        0.04,
        0,
        0.04,
        0.04,
        0.04,
        0.04
      ],
      [
        0.36,
        0.36,
        0.36,
        0.36,
        0.36,
        0.36,
        0.36,
        0.36,
        0.36,
        0.36,
        0.36,
        0.36,
        0.3,
        0.3,
        0.3,
        0.3,
        0.3,
        0.3,
        0.3,
        0.3,
        0.3,
        0.3,
        0.3,
        0.3,
        0.3,
        0.3,
        0.3,
        0.2,
        0.2,
        0.2,
        0.2,
        0.2,
        0.2,
        0.2,
        0.2,
        0.2,
        0.2,
        0.2,
        0.2,
        0.2,
        0.2,
        0.2,
        0.04,
        0.04,
        0.04,
        0.04,
        0.04,
        0.04,
        0.04,
        0.04,
        0,
        0.04
      ]
    ]
  }
}
